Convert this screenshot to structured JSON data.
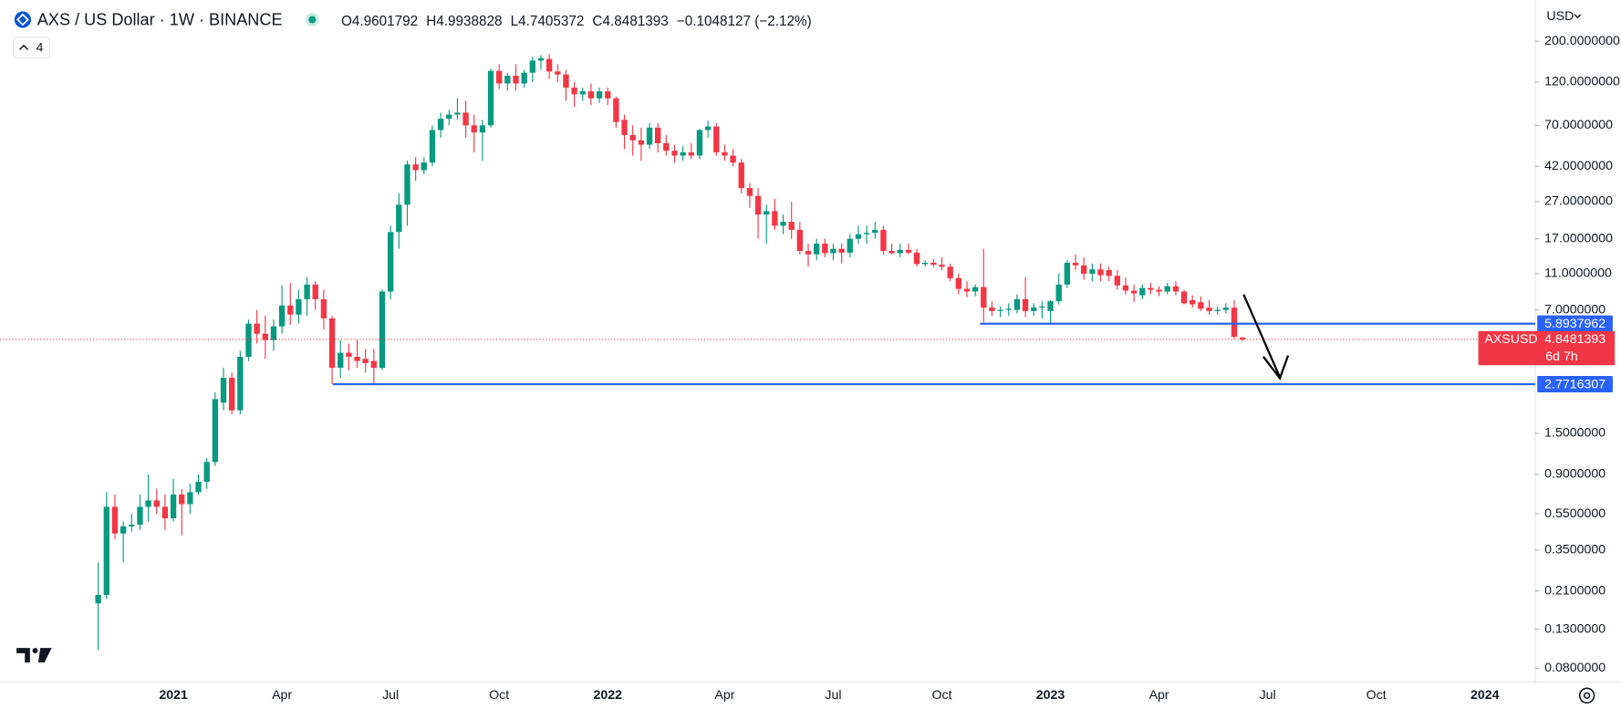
{
  "header": {
    "symbol": "AXS / US Dollar · 1W · BINANCE",
    "ohlc_labels": [
      "O",
      "H",
      "L",
      "C"
    ],
    "change": "−0.1048127 (−2.12%)",
    "indicators": "4",
    "currency": "USD"
  },
  "chart_data": {
    "type": "candlestick",
    "log_scale": true,
    "grid": false,
    "up_color": "#089981",
    "down_color": "#f23645",
    "categories": [
      null,
      null,
      null,
      null,
      null,
      null,
      null,
      null,
      null,
      "2021",
      null,
      null,
      null,
      null,
      null,
      null,
      null,
      null,
      null,
      null,
      null,
      null,
      "Apr",
      null,
      null,
      null,
      null,
      null,
      null,
      null,
      null,
      null,
      null,
      null,
      null,
      "Jul",
      null,
      null,
      null,
      null,
      null,
      null,
      null,
      null,
      null,
      null,
      null,
      null,
      "Oct",
      null,
      null,
      null,
      null,
      null,
      null,
      null,
      null,
      null,
      null,
      null,
      null,
      "2022",
      null,
      null,
      null,
      null,
      null,
      null,
      null,
      null,
      null,
      null,
      null,
      null,
      null,
      "Apr",
      null,
      null,
      null,
      null,
      null,
      null,
      null,
      null,
      null,
      null,
      null,
      null,
      "Jul",
      null,
      null,
      null,
      null,
      null,
      null,
      null,
      null,
      null,
      null,
      null,
      null,
      "Oct",
      null,
      null,
      null,
      null,
      null,
      null,
      null,
      null,
      null,
      null,
      null,
      null,
      "2023",
      null,
      null,
      null,
      null,
      null,
      null,
      null,
      null,
      null,
      null,
      null,
      null,
      "Apr",
      null,
      null,
      null,
      null,
      null,
      null,
      null,
      null,
      null,
      null,
      null,
      null,
      "Jul",
      null,
      null,
      null,
      null,
      null,
      null,
      null,
      null,
      null,
      null,
      null,
      null,
      "Oct",
      null,
      null,
      null,
      null,
      null,
      null,
      null,
      null,
      null,
      null,
      null,
      null,
      "2024",
      null,
      null,
      null,
      null,
      null
    ],
    "open": [
      0.18,
      0.2,
      0.6,
      0.43,
      0.47,
      0.48,
      0.6,
      0.65,
      0.6,
      0.52,
      0.7,
      0.62,
      0.72,
      0.82,
      1.05,
      2.2,
      3.0,
      2.0,
      3.9,
      5.9,
      5.2,
      4.8,
      5.7,
      7.4,
      6.6,
      8.0,
      9.6,
      8.0,
      6.3,
      3.4,
      4.1,
      3.9,
      3.8,
      3.7,
      3.4,
      8.8,
      18.5,
      26,
      43,
      40,
      44,
      66,
      76,
      80,
      82,
      70,
      64,
      70,
      138,
      118,
      130,
      118,
      135,
      157,
      160,
      137,
      132,
      112,
      103,
      107,
      98,
      107,
      98,
      75,
      62,
      58,
      55,
      68,
      56,
      51,
      48,
      50,
      48,
      66,
      69,
      50,
      48,
      44,
      32,
      29,
      23,
      24,
      20,
      21,
      19,
      14.6,
      14,
      16,
      14.2,
      15,
      14.3,
      17,
      18,
      18.3,
      19,
      14.6,
      14.2,
      14.8,
      14.3,
      12.4,
      12.6,
      12.3,
      12,
      10.4,
      9.1,
      8.8,
      9.3,
      7.2,
      6.9,
      7.0,
      7.0,
      8.0,
      6.9,
      7.2,
      6.9,
      7.8,
      9.6,
      12.6,
      12.2,
      11,
      11.6,
      11.5,
      10.7,
      9.5,
      8.9,
      8.4,
      9.2,
      9.0,
      8.8,
      9.4,
      8.8,
      7.9,
      7.7,
      7.2,
      6.9,
      7.0,
      7.2,
      4.9601792,
      null,
      null,
      null,
      null,
      null,
      null,
      null,
      null,
      null,
      null,
      null,
      null,
      null,
      null,
      null,
      null,
      null,
      null,
      null,
      null,
      null,
      null,
      null,
      null,
      null,
      null,
      null,
      null,
      null,
      null,
      null,
      null,
      null,
      null
    ],
    "high": [
      0.3,
      0.72,
      0.7,
      0.5,
      0.55,
      0.7,
      0.9,
      0.75,
      0.7,
      0.85,
      0.75,
      0.8,
      0.9,
      1.1,
      2.5,
      3.4,
      3.2,
      4.2,
      6.2,
      7.0,
      6.5,
      6.2,
      9.5,
      9.8,
      9.0,
      10.5,
      10,
      9,
      6.5,
      4.8,
      4.6,
      4.8,
      4.3,
      4.3,
      9,
      20,
      30,
      45,
      47,
      47,
      70,
      82,
      85,
      98,
      95,
      80,
      75,
      142,
      150,
      135,
      150,
      140,
      165,
      168,
      170,
      150,
      140,
      120,
      112,
      118,
      112,
      112,
      100,
      80,
      70,
      68,
      72,
      72,
      62,
      55,
      54,
      56,
      67,
      74,
      72,
      55,
      52,
      46,
      34,
      32,
      26,
      28,
      23,
      27,
      21,
      16,
      17,
      17,
      16,
      16,
      18,
      20,
      20,
      21,
      20,
      16,
      16,
      16,
      15,
      13,
      13.2,
      13.5,
      12.5,
      11,
      10,
      9.6,
      15,
      7.8,
      7.3,
      7.6,
      8.5,
      10.5,
      7.6,
      7.8,
      7.9,
      11,
      13,
      14,
      13.5,
      12.5,
      12.5,
      12,
      11.5,
      10.5,
      9.6,
      9.6,
      9.8,
      9.4,
      9.8,
      10,
      9,
      8.4,
      8.3,
      7.9,
      7.3,
      7.6,
      7.9,
      4.9938828,
      null,
      null,
      null,
      null,
      null,
      null,
      null,
      null,
      null,
      null,
      null,
      null,
      null,
      null,
      null,
      null,
      null,
      null,
      null,
      null,
      null,
      null,
      null,
      null,
      null,
      null,
      null,
      null,
      null,
      null,
      null,
      null,
      null,
      null
    ],
    "low": [
      0.1,
      0.19,
      0.4,
      0.3,
      0.44,
      0.45,
      0.5,
      0.55,
      0.45,
      0.5,
      0.42,
      0.55,
      0.7,
      0.75,
      1.0,
      2.0,
      1.9,
      1.9,
      3.7,
      4.6,
      3.8,
      4.2,
      5.2,
      5.8,
      5.9,
      6.5,
      7,
      5.5,
      2.77,
      3.0,
      3.3,
      3.4,
      3.2,
      2.77,
      3.3,
      8,
      15,
      20,
      35,
      38,
      42,
      60,
      70,
      75,
      60,
      50,
      45,
      68,
      110,
      108,
      108,
      112,
      120,
      140,
      125,
      120,
      95,
      88,
      95,
      90,
      93,
      90,
      68,
      52,
      48,
      45,
      52,
      50,
      48,
      44,
      45,
      46,
      46,
      60,
      48,
      45,
      42,
      30,
      25,
      17,
      16,
      19,
      18,
      17,
      14,
      12,
      13,
      13.5,
      13,
      12.5,
      13.5,
      16,
      16,
      17,
      14,
      14,
      13.5,
      14,
      12,
      12,
      12,
      11.5,
      10,
      8.5,
      8.2,
      8.3,
      6.0,
      6.5,
      6.4,
      6.5,
      6.7,
      6.4,
      6.5,
      6.3,
      5.9,
      7.5,
      9.2,
      11.5,
      10.2,
      10,
      10,
      10,
      9,
      8.5,
      7.7,
      8,
      8.5,
      8.3,
      8.5,
      8.4,
      7.5,
      7.2,
      6.9,
      6.6,
      6.6,
      6.7,
      4.9,
      4.7405372,
      null,
      null,
      null,
      null,
      null,
      null,
      null,
      null,
      null,
      null,
      null,
      null,
      null,
      null,
      null,
      null,
      null,
      null,
      null,
      null,
      null,
      null,
      null,
      null,
      null,
      null,
      null,
      null,
      null,
      null,
      null,
      null,
      null,
      null
    ],
    "close": [
      0.2,
      0.6,
      0.43,
      0.47,
      0.48,
      0.6,
      0.65,
      0.6,
      0.52,
      0.7,
      0.62,
      0.72,
      0.82,
      1.05,
      2.3,
      3.0,
      2.0,
      3.9,
      5.9,
      5.2,
      4.8,
      5.7,
      7.4,
      6.6,
      8.0,
      9.6,
      8.0,
      6.3,
      3.4,
      4.1,
      3.9,
      3.7,
      3.6,
      3.4,
      8.8,
      18.5,
      26,
      43,
      40,
      44,
      66,
      76,
      80,
      82,
      70,
      64,
      70,
      138,
      118,
      130,
      118,
      135,
      157,
      162,
      137,
      132,
      112,
      103,
      107,
      98,
      107,
      98,
      73,
      62,
      58,
      55,
      68,
      56,
      51,
      48,
      50,
      48,
      66,
      69,
      50,
      48,
      44,
      32,
      29,
      23,
      24,
      20,
      21,
      19,
      14.6,
      14,
      16,
      14.2,
      15,
      14.3,
      17,
      18,
      18.3,
      19,
      14.6,
      14.2,
      14.8,
      14.3,
      12.4,
      12.6,
      12.3,
      12,
      10.4,
      9.1,
      8.8,
      9.3,
      7.2,
      6.9,
      7.0,
      7.1,
      8.0,
      6.9,
      7.2,
      7.3,
      7.8,
      9.6,
      12.6,
      12.2,
      11.0,
      11.6,
      10.8,
      10.7,
      9.5,
      8.9,
      8.6,
      9.2,
      9.0,
      8.8,
      9.4,
      8.8,
      7.6,
      7.5,
      7.1,
      6.9,
      7.0,
      7.2,
      5.0,
      4.8481393,
      null,
      null,
      null,
      null,
      null,
      null,
      null,
      null,
      null,
      null,
      null,
      null,
      null,
      null,
      null,
      null,
      null,
      null,
      null,
      null,
      null,
      null,
      null,
      null,
      null,
      null,
      null,
      null,
      null,
      null,
      null,
      null,
      null,
      null
    ],
    "ylim": [
      0.07,
      230
    ],
    "yticks": [
      {
        "value": 200,
        "label": "200.0000000"
      },
      {
        "value": 120,
        "label": "120.0000000"
      },
      {
        "value": 70,
        "label": "70.0000000"
      },
      {
        "value": 42,
        "label": "42.0000000"
      },
      {
        "value": 27,
        "label": "27.0000000"
      },
      {
        "value": 17,
        "label": "17.0000000"
      },
      {
        "value": 11,
        "label": "11.0000000"
      },
      {
        "value": 7,
        "label": "7.0000000"
      },
      {
        "value": 1.5,
        "label": "1.5000000"
      },
      {
        "value": 0.9,
        "label": "0.9000000"
      },
      {
        "value": 0.55,
        "label": "0.5500000"
      },
      {
        "value": 0.35,
        "label": "0.3500000"
      },
      {
        "value": 0.21,
        "label": "0.2100000"
      },
      {
        "value": 0.13,
        "label": "0.1300000"
      },
      {
        "value": 0.08,
        "label": "0.0800000"
      }
    ],
    "levels": [
      {
        "value": 5.8937962,
        "color": "#2962ff"
      },
      {
        "value": 2.7716307,
        "color": "#2962ff"
      }
    ],
    "price_label": {
      "symbol": "AXSUSD",
      "countdown": "6d 7h"
    }
  }
}
